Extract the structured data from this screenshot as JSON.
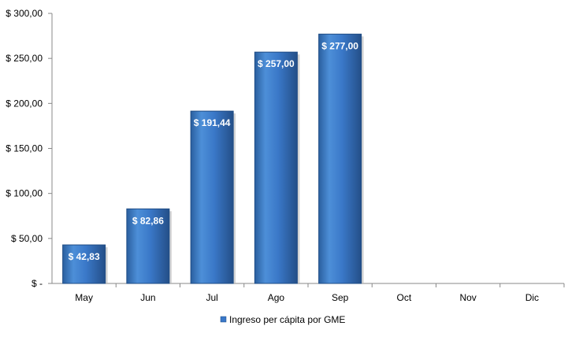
{
  "chart_data": {
    "type": "bar",
    "categories": [
      "May",
      "Jun",
      "Jul",
      "Ago",
      "Sep",
      "Oct",
      "Nov",
      "Dic"
    ],
    "series": [
      {
        "name": "Ingreso per cápita por GME",
        "values": [
          42.83,
          82.86,
          191.44,
          257.0,
          277.0,
          null,
          null,
          null
        ],
        "labels": [
          "$ 42,83",
          "$ 82,86",
          "$ 191,44",
          "$ 257,00",
          "$ 277,00",
          "",
          "",
          ""
        ],
        "color": "#3A78C8"
      }
    ],
    "y_ticks": [
      0,
      50,
      100,
      150,
      200,
      250,
      300
    ],
    "y_tick_labels": [
      "$ -",
      "$ 50,00",
      "$ 100,00",
      "$ 150,00",
      "$ 200,00",
      "$ 250,00",
      "$ 300,00"
    ],
    "ylim": [
      0,
      300
    ],
    "grid": false,
    "legend_position": "bottom"
  }
}
